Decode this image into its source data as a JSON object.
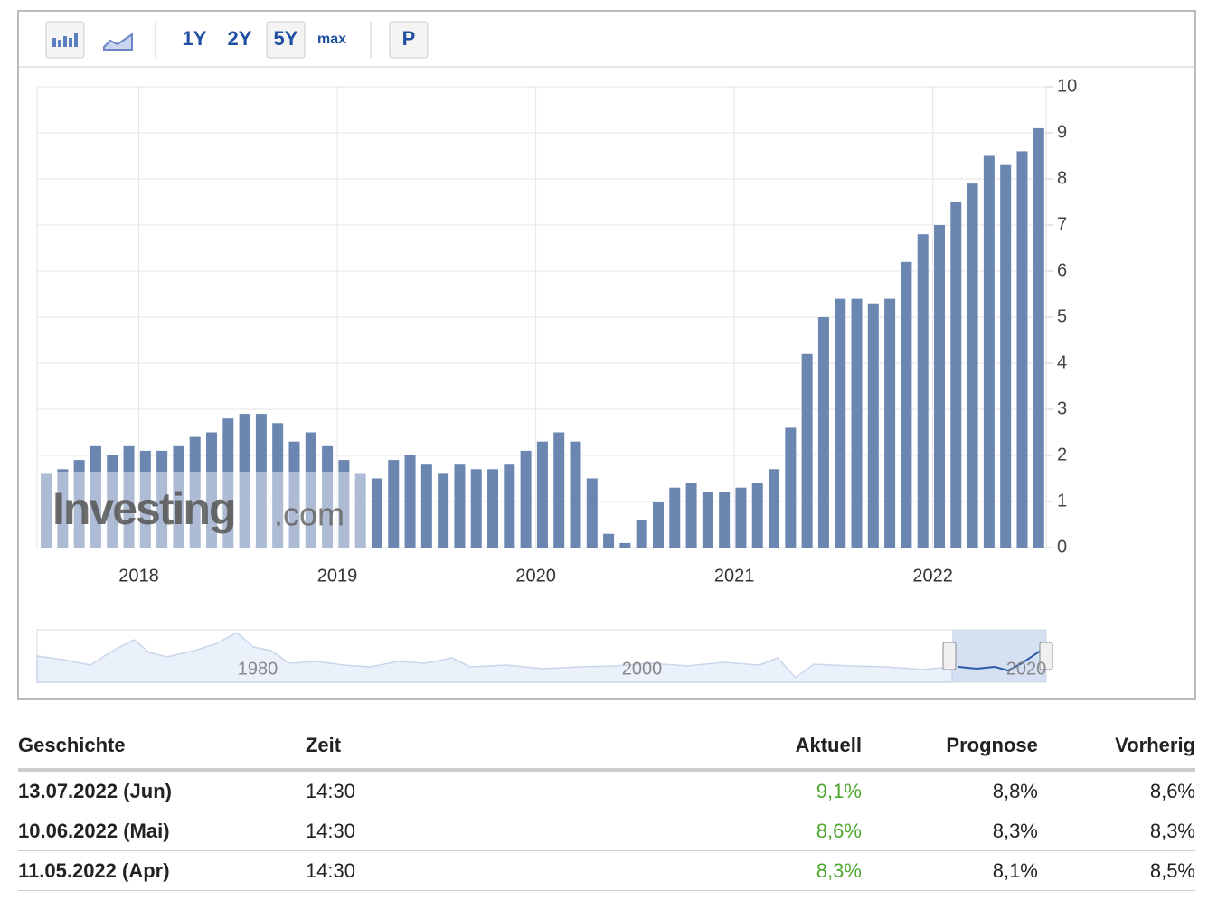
{
  "toolbar": {
    "ranges": [
      "1Y",
      "2Y",
      "5Y",
      "max"
    ],
    "active": "5Y",
    "extra": "P"
  },
  "chart_data": {
    "type": "bar",
    "color": "#6a86b1",
    "values": [
      1.6,
      1.7,
      1.9,
      2.2,
      2.0,
      2.2,
      2.1,
      2.1,
      2.2,
      2.4,
      2.5,
      2.8,
      2.9,
      2.9,
      2.7,
      2.3,
      2.5,
      2.2,
      1.9,
      1.6,
      1.5,
      1.9,
      2.0,
      1.8,
      1.6,
      1.8,
      1.7,
      1.7,
      1.8,
      2.1,
      2.3,
      2.5,
      2.3,
      1.5,
      0.3,
      0.1,
      0.6,
      1.0,
      1.3,
      1.4,
      1.2,
      1.2,
      1.3,
      1.4,
      1.7,
      2.6,
      4.2,
      5.0,
      5.4,
      5.4,
      5.3,
      5.4,
      6.2,
      6.8,
      7.0,
      7.5,
      7.9,
      8.5,
      8.3,
      8.6,
      9.1
    ],
    "xlim": [
      -0.55,
      60.45
    ],
    "xticks": [
      {
        "value": 5.6,
        "label": "2018"
      },
      {
        "value": 17.6,
        "label": "2019"
      },
      {
        "value": 29.6,
        "label": "2020"
      },
      {
        "value": 41.6,
        "label": "2021"
      },
      {
        "value": 53.6,
        "label": "2022"
      }
    ],
    "ylim": [
      0,
      10
    ],
    "yticks": [
      0,
      1,
      2,
      3,
      4,
      5,
      6,
      7,
      8,
      9,
      10
    ],
    "grid": true,
    "watermark": [
      "Investing",
      ".com"
    ],
    "navigator_labels": [
      "1980",
      "2000",
      "2020"
    ]
  },
  "table": {
    "header": [
      "Geschichte",
      "Zeit",
      "Aktuell",
      "Prognose",
      "Vorherig"
    ],
    "rows": [
      [
        "13.07.2022 (Jun)",
        "14:30",
        "9,1%",
        "8,8%",
        "8,6%"
      ],
      [
        "10.06.2022 (Mai)",
        "14:30",
        "8,6%",
        "8,3%",
        "8,3%"
      ],
      [
        "11.05.2022 (Apr)",
        "14:30",
        "8,3%",
        "8,1%",
        "8,5%"
      ]
    ]
  }
}
